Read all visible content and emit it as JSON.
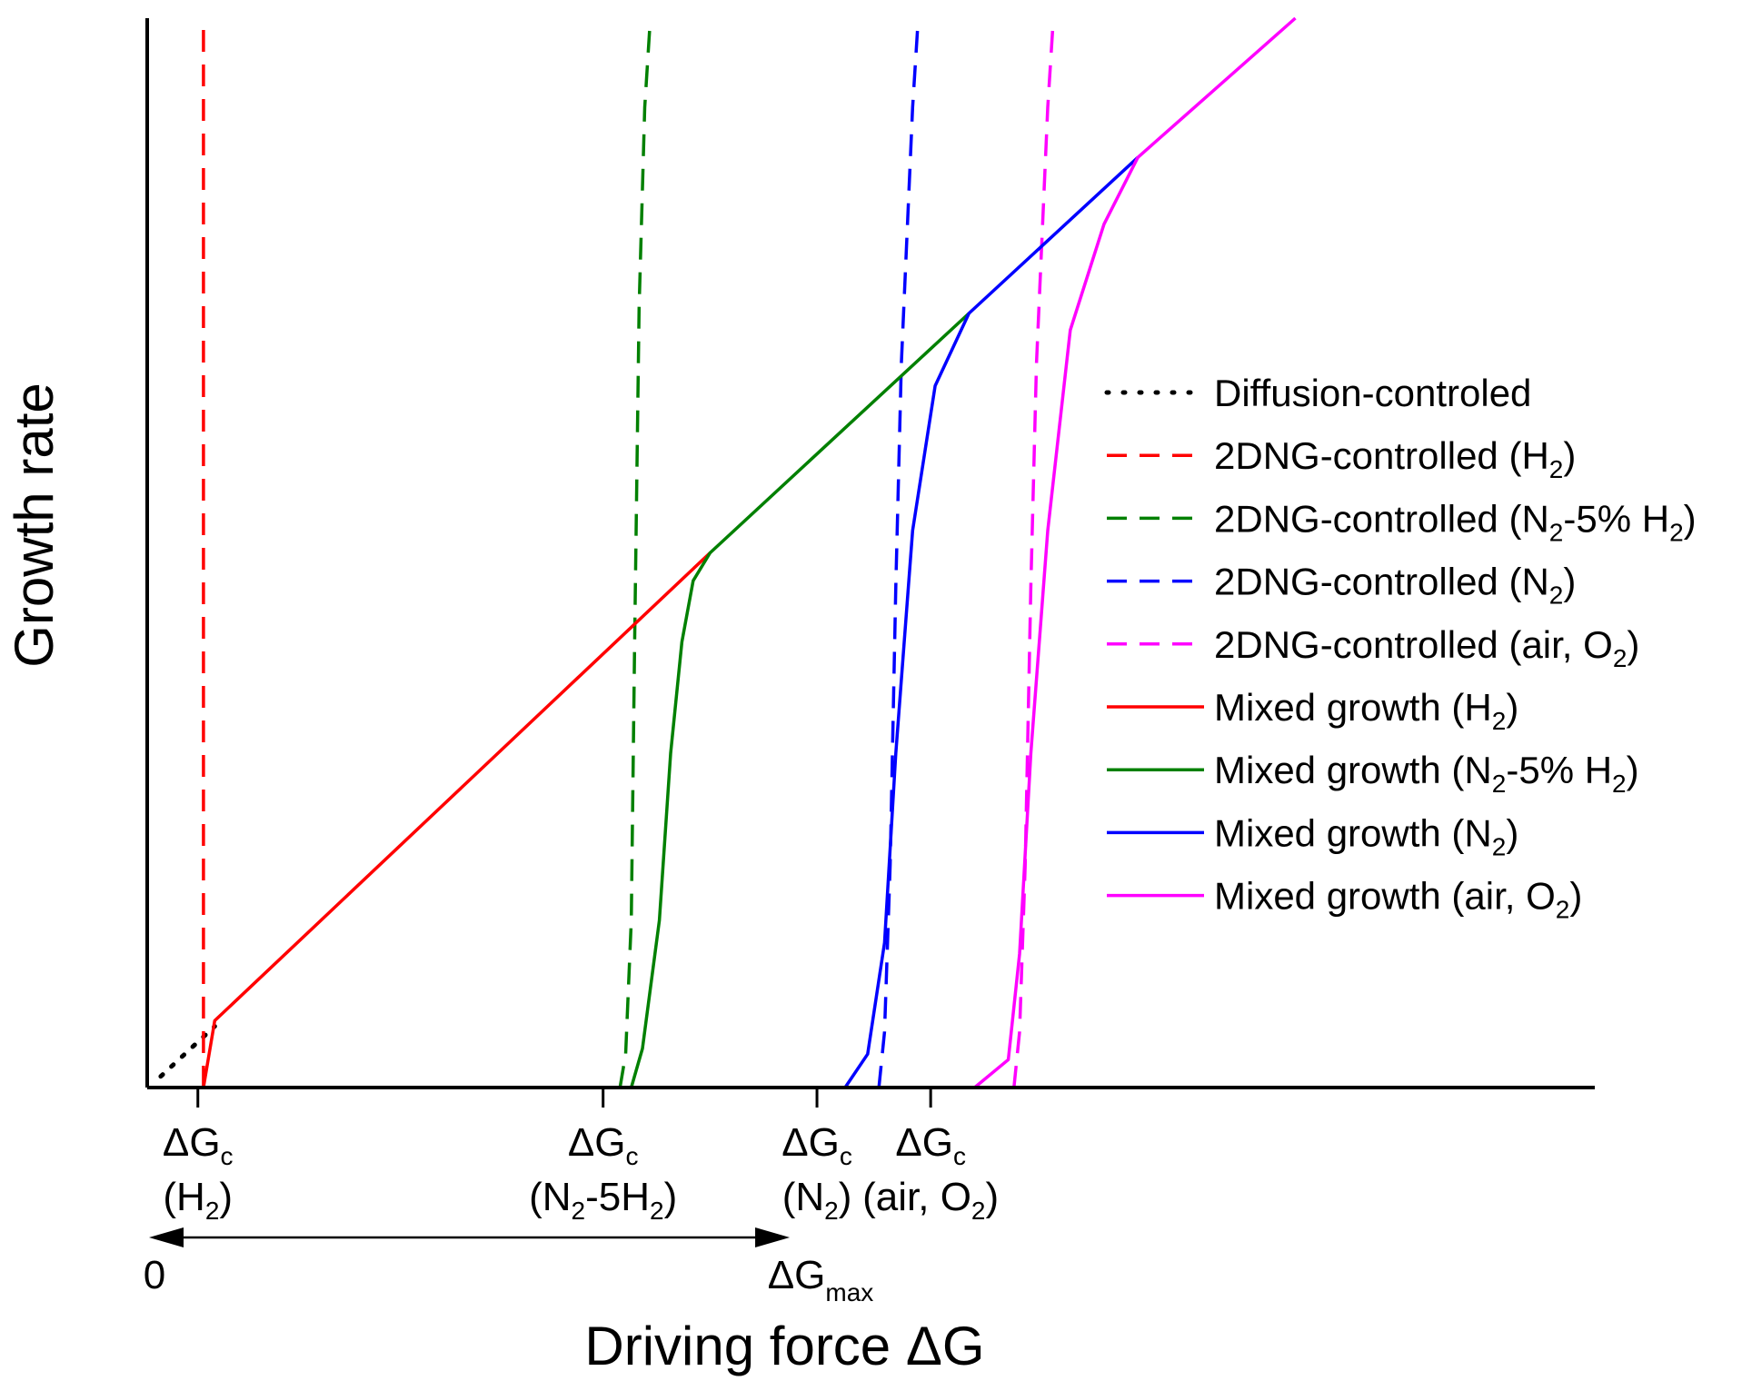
{
  "chart_data": {
    "type": "line",
    "title": "",
    "xlabel": "Driving force ΔG",
    "ylabel": "Growth rate",
    "xlim": [
      0,
      12.86
    ],
    "ylim": [
      0,
      9.6
    ],
    "grid": false,
    "legend_position": "right",
    "x_ticks": [
      {
        "x": 0.45,
        "symbol": "ΔG",
        "sub": "c",
        "note_pre": "(H",
        "note_sub": "2",
        "note_post": ")"
      },
      {
        "x": 4.05,
        "symbol": "ΔG",
        "sub": "c",
        "note_pre": "(N",
        "note_sub": "2",
        "note_post": "-5H",
        "note_sub2": "2",
        "note_post2": ")"
      },
      {
        "x": 5.95,
        "symbol": "ΔG",
        "sub": "c",
        "note_pre": "(N",
        "note_sub": "2",
        "note_post": ")"
      },
      {
        "x": 6.96,
        "symbol": "ΔG",
        "sub": "c",
        "note_pre": "(air, O",
        "note_sub": "2",
        "note_post": ")"
      }
    ],
    "range_annotation": {
      "start_label": "0",
      "end_symbol": "ΔG",
      "end_sub": "max",
      "from_x": 0,
      "to_x": 5.95
    },
    "series": [
      {
        "name": "Diffusion-controled",
        "color": "#000000",
        "style": "dotted",
        "x": [
          0.12,
          0.6
        ],
        "y": [
          0.1,
          0.55
        ]
      },
      {
        "name": "2DNG-controlled (H₂)",
        "label_pre": "2DNG-controlled (H",
        "label_sub": "2",
        "label_post": ")",
        "color": "#ff0000",
        "style": "dashed",
        "x": [
          0.5,
          0.5
        ],
        "y": [
          0,
          9.6
        ]
      },
      {
        "name": "2DNG-controlled (N₂-5% H₂)",
        "label_pre": "2DNG-controlled (N",
        "label_sub": "2",
        "label_post": "-5% H",
        "label_sub2": "2",
        "label_post2": ")",
        "color": "#008000",
        "style": "dashed",
        "x": [
          4.2,
          4.25,
          4.3,
          4.33,
          4.37,
          4.42,
          4.47
        ],
        "y": [
          0,
          0.3,
          1.5,
          4.0,
          7.0,
          8.8,
          9.6
        ]
      },
      {
        "name": "2DNG-controlled (N₂)",
        "label_pre": "2DNG-controlled (N",
        "label_sub": "2",
        "label_post": ")",
        "color": "#0000ff",
        "style": "dashed",
        "x": [
          6.5,
          6.55,
          6.6,
          6.65,
          6.7,
          6.8,
          6.85
        ],
        "y": [
          0,
          0.5,
          2.0,
          4.5,
          6.5,
          8.8,
          9.6
        ]
      },
      {
        "name": "2DNG-controlled (air, O₂)",
        "label_pre": "2DNG-controlled (air, O",
        "label_sub": "2",
        "label_post": ")",
        "color": "#ff00ff",
        "style": "dashed",
        "x": [
          7.7,
          7.75,
          7.8,
          7.85,
          7.9,
          8.0,
          8.05
        ],
        "y": [
          0,
          0.5,
          2.0,
          4.5,
          6.5,
          8.8,
          9.6
        ]
      },
      {
        "name": "Mixed growth (H₂)",
        "label_pre": "Mixed growth (H",
        "label_sub": "2",
        "label_post": ")",
        "color": "#ff0000",
        "style": "solid",
        "x": [
          0.5,
          0.6,
          5.0
        ],
        "y": [
          0,
          0.6,
          4.8
        ]
      },
      {
        "name": "Mixed growth (N₂-5% H₂)",
        "label_pre": "Mixed growth (N",
        "label_sub": "2",
        "label_post": "-5% H",
        "label_sub2": "2",
        "label_post2": ")",
        "color": "#008000",
        "style": "solid",
        "x": [
          4.3,
          4.4,
          4.55,
          4.65,
          4.75,
          4.85,
          5.0,
          7.3
        ],
        "y": [
          0,
          0.35,
          1.5,
          3.0,
          4.0,
          4.55,
          4.8,
          6.95
        ]
      },
      {
        "name": "Mixed growth (N₂)",
        "label_pre": "Mixed growth (N",
        "label_sub": "2",
        "label_post": ")",
        "color": "#0000ff",
        "style": "solid",
        "x": [
          6.2,
          6.4,
          6.55,
          6.65,
          6.8,
          7.0,
          7.3,
          8.8
        ],
        "y": [
          0,
          0.3,
          1.3,
          3.0,
          5.0,
          6.3,
          6.95,
          8.35
        ]
      },
      {
        "name": "Mixed growth (air, O₂)",
        "label_pre": "Mixed growth (air, O",
        "label_sub": "2",
        "label_post": ")",
        "color": "#ff00ff",
        "style": "solid",
        "x": [
          7.35,
          7.65,
          7.75,
          7.85,
          8.0,
          8.2,
          8.5,
          8.8,
          10.2
        ],
        "y": [
          0,
          0.25,
          1.2,
          3.0,
          5.0,
          6.8,
          7.75,
          8.35,
          9.6
        ]
      }
    ]
  }
}
